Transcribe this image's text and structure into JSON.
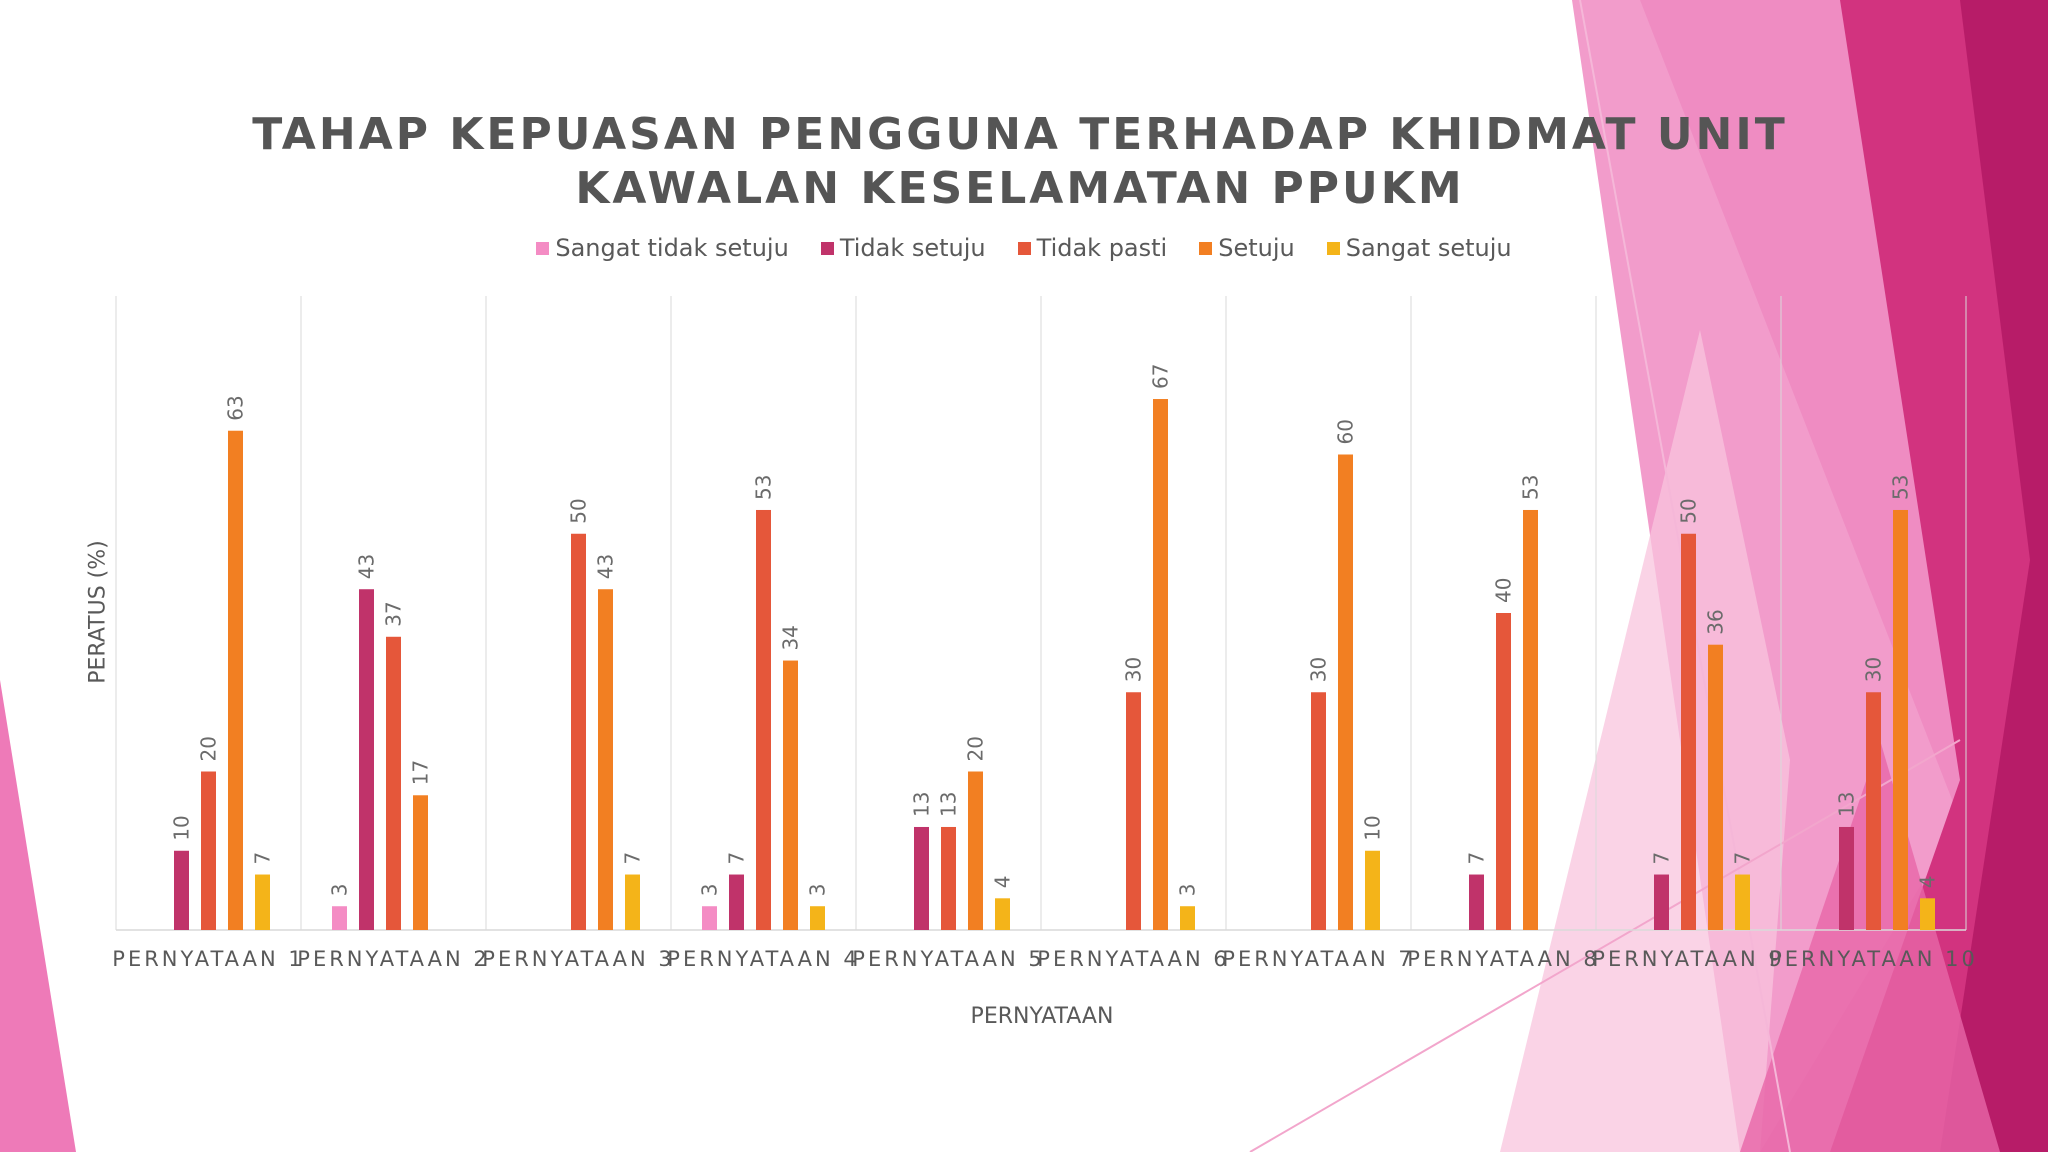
{
  "colors": {
    "sangat_tidak_setuju": "#f48cc4",
    "tidak_setuju": "#c0336a",
    "tidak_pasti": "#e5573a",
    "setuju": "#f27f22",
    "sangat_setuju": "#f4b419",
    "accent_magenta": "#c2206f",
    "accent_pink": "#ee7ab8"
  },
  "chart_data": {
    "type": "bar",
    "title": "TAHAP KEPUASAN PENGGUNA TERHADAP KHIDMAT UNIT KAWALAN KESELAMATAN PPUKM",
    "xlabel": "PERNYATAAN",
    "ylabel": "PERATUS (%)",
    "ylim": [
      0,
      80
    ],
    "grid": "vertical category separators",
    "legend_position": "top",
    "categories": [
      "PERNYATAAN 1",
      "PERNYATAAN 2",
      "PERNYATAAN 3",
      "PERNYATAAN 4",
      "PERNYATAAN 5",
      "PERNYATAAN 6",
      "PERNYATAAN 7",
      "PERNYATAAN 8",
      "PERNYATAAN 9",
      "PERNYATAAN 10"
    ],
    "series": [
      {
        "name": "Sangat tidak setuju",
        "values": [
          null,
          3,
          null,
          3,
          null,
          null,
          null,
          null,
          null,
          null
        ]
      },
      {
        "name": "Tidak setuju",
        "values": [
          10,
          43,
          null,
          7,
          13,
          null,
          null,
          7,
          7,
          13
        ]
      },
      {
        "name": "Tidak pasti",
        "values": [
          20,
          37,
          50,
          53,
          13,
          30,
          30,
          40,
          50,
          30
        ]
      },
      {
        "name": "Setuju",
        "values": [
          63,
          17,
          43,
          34,
          20,
          67,
          60,
          53,
          36,
          53
        ]
      },
      {
        "name": "Sangat setuju",
        "values": [
          7,
          null,
          7,
          3,
          4,
          3,
          10,
          null,
          7,
          4
        ]
      }
    ]
  }
}
